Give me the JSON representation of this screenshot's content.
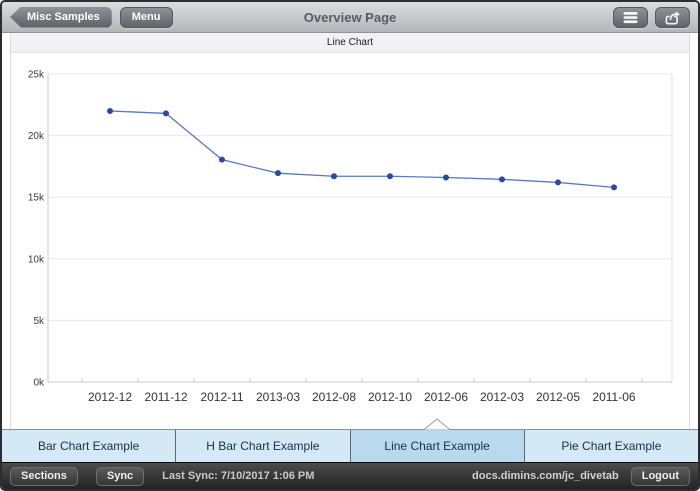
{
  "header": {
    "back_button": "Misc Samples",
    "menu_button": "Menu",
    "title": "Overview Page",
    "list_icon": "list-icon",
    "share_icon": "share-icon"
  },
  "subheader": {
    "title": "Line Chart"
  },
  "chart_data": {
    "type": "line",
    "title": "Line Chart",
    "categories": [
      "2012-12",
      "2011-12",
      "2012-11",
      "2013-03",
      "2012-08",
      "2012-10",
      "2012-06",
      "2012-03",
      "2012-05",
      "2011-06"
    ],
    "values": [
      22000,
      21800,
      18050,
      16950,
      16700,
      16700,
      16600,
      16450,
      16200,
      15800
    ],
    "xlabel": "",
    "ylabel": "",
    "ylim": [
      0,
      25000
    ],
    "yticks": [
      0,
      5000,
      10000,
      15000,
      20000,
      25000
    ],
    "ytick_labels": [
      "0k",
      "5k",
      "10k",
      "15k",
      "20k",
      "25k"
    ],
    "grid": true,
    "legend_position": "none",
    "line_color": "#5b78bf",
    "point_color": "#2a4aa1"
  },
  "tabs": [
    {
      "label": "Bar Chart Example",
      "selected": false
    },
    {
      "label": "H Bar Chart Example",
      "selected": false
    },
    {
      "label": "Line Chart Example",
      "selected": true
    },
    {
      "label": "Pie Chart Example",
      "selected": false
    }
  ],
  "statusbar": {
    "sections_button": "Sections",
    "sync_button": "Sync",
    "last_sync": "Last Sync: 7/10/2017 1:06 PM",
    "server": "docs.dimins.com/jc_divetab",
    "logout_button": "Logout"
  },
  "colors": {
    "tab_bg": "#d5e8f5",
    "tab_selected_bg": "#b9d9ee",
    "grid": "#e8e8e8",
    "axis": "#c9cbce",
    "plot_right_border": "#e2e2e4"
  }
}
